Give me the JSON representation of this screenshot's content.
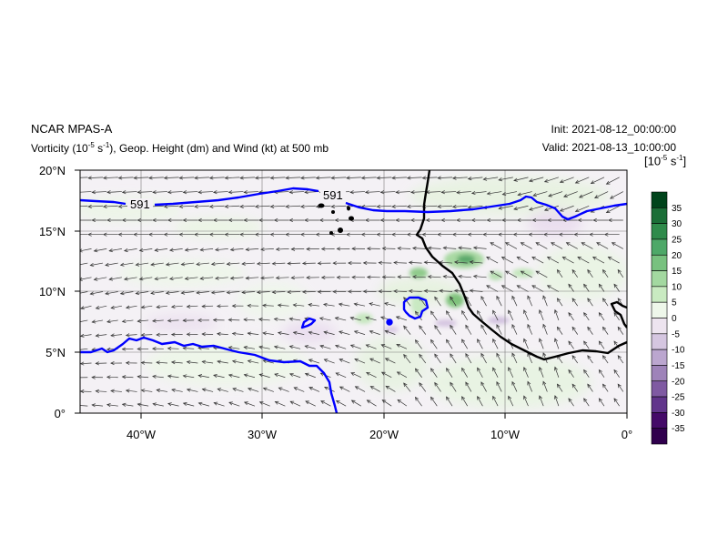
{
  "header": {
    "model": "NCAR MPAS-A",
    "subtitle_pre": "Vorticity (10",
    "subtitle_exp": "-5",
    "subtitle_mid": " s",
    "subtitle_exp2": "-1",
    "subtitle_post": "), Geop. Height (dm) and Wind (kt) at 500 mb",
    "init_label": "Init: 2021-08-12_00:00:00",
    "valid_label": "Valid: 2021-08-13_10:00:00"
  },
  "colorbar": {
    "units_pre": "[10",
    "units_exp": "-5",
    "units_mid": " s",
    "units_exp2": "-1",
    "units_post": "]",
    "levels": [
      "35",
      "30",
      "25",
      "20",
      "15",
      "10",
      "5",
      "0",
      "-5",
      "-10",
      "-15",
      "-20",
      "-25",
      "-30",
      "-35"
    ],
    "colors": [
      "#00441b",
      "#1b6e37",
      "#2f8b4b",
      "#4ea868",
      "#78c17f",
      "#a3d8a0",
      "#c9eac1",
      "#eef7ea",
      "#ede4ef",
      "#d5c6e0",
      "#bba6cf",
      "#9e83b9",
      "#7f5aa2",
      "#61358b",
      "#440a68",
      "#30004d"
    ]
  },
  "map": {
    "lon_ticks": [
      "40°W",
      "30°W",
      "20°W",
      "10°W",
      "0°"
    ],
    "lat_ticks": [
      "20°N",
      "15°N",
      "10°N",
      "5°N",
      "0°"
    ],
    "contour_labels": [
      "591",
      "591"
    ],
    "contour_color": "#0000ff",
    "coast_color": "#000000"
  }
}
